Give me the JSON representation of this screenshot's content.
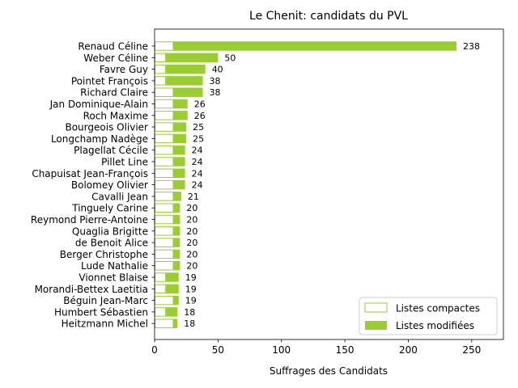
{
  "chart_data": {
    "type": "bar",
    "orientation": "horizontal",
    "stacked": true,
    "title": "Le Chenit: candidats du PVL",
    "xlabel": "Suffrages des Candidats",
    "ylabel": "",
    "xlim": [
      0,
      275
    ],
    "xticks": [
      0,
      50,
      100,
      150,
      200,
      250
    ],
    "grid": false,
    "legend_position": "bottom-right",
    "colors": {
      "compact": "#9acd32",
      "modified": "#9acd32"
    },
    "categories": [
      "Renaud Céline",
      "Weber Céline",
      "Favre Guy",
      "Pointet François",
      "Richard Claire",
      "Jan Dominique-Alain",
      "Roch Maxime",
      "Bourgeois Olivier",
      "Longchamp Nadège",
      "Plagellat Cécile",
      "Pillet Line",
      "Chapuisat Jean-François",
      "Bolomey Olivier",
      "Cavalli Jean",
      "Tinguely Carine",
      "Reymond Pierre-Antoine",
      "Quaglia Brigitte",
      "de Benoit Alice",
      "Berger Christophe",
      "Lude Nathalie",
      "Vionnet Blaise",
      "Morandi-Bettex Laetitia",
      "Béguin Jean-Marc",
      "Humbert Sébastien",
      "Heitzmann Michel"
    ],
    "series": [
      {
        "name": "Listes compactes",
        "values": [
          15,
          9,
          9,
          9,
          15,
          15,
          15,
          15,
          15,
          15,
          15,
          15,
          15,
          15,
          15,
          15,
          15,
          15,
          15,
          15,
          9,
          9,
          15,
          9,
          15
        ]
      },
      {
        "name": "Listes modifiées",
        "values": [
          223,
          41,
          31,
          29,
          23,
          11,
          11,
          10,
          10,
          9,
          9,
          9,
          9,
          6,
          5,
          5,
          5,
          5,
          5,
          5,
          10,
          10,
          4,
          9,
          3
        ]
      }
    ],
    "totals": [
      238,
      50,
      40,
      38,
      38,
      26,
      26,
      25,
      25,
      24,
      24,
      24,
      24,
      21,
      20,
      20,
      20,
      20,
      20,
      20,
      19,
      19,
      19,
      18,
      18
    ]
  }
}
